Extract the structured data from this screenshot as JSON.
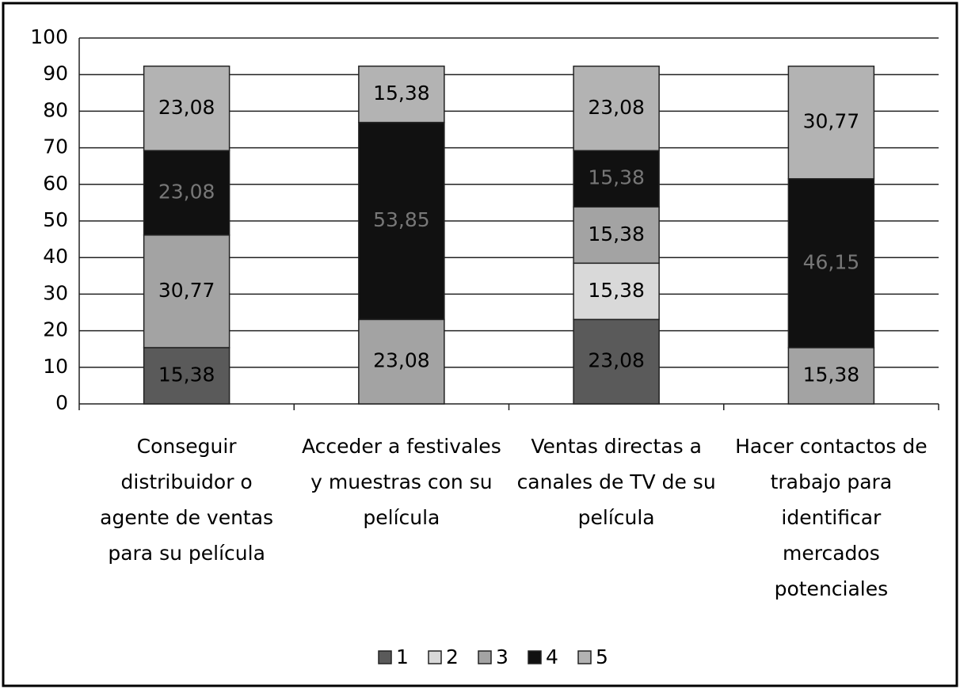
{
  "chart_data": {
    "type": "stacked_bar",
    "categories": [
      "Conseguir\ndistribuidor o\nagente de ventas\npara su película",
      "Acceder a festivales\ny muestras con su\npelícula",
      "Ventas directas a\ncanales de TV de su\npelícula",
      "Hacer contactos de\ntrabajo para\nidentificar\nmercados\npotenciales"
    ],
    "series": [
      {
        "name": "1",
        "color": "#5a5a5a",
        "values": [
          15.38,
          0,
          23.08,
          0
        ],
        "value_labels": [
          "15,38",
          null,
          "23,08",
          null
        ]
      },
      {
        "name": "2",
        "color": "#d9d9d9",
        "values": [
          0,
          0,
          15.38,
          0
        ],
        "value_labels": [
          null,
          null,
          "15,38",
          null
        ]
      },
      {
        "name": "3",
        "color": "#a3a3a3",
        "values": [
          30.77,
          23.08,
          15.38,
          15.38
        ],
        "value_labels": [
          "30,77",
          "23,08",
          "15,38",
          "15,38"
        ]
      },
      {
        "name": "4",
        "color": "#111111",
        "values": [
          23.08,
          53.85,
          15.38,
          46.15
        ],
        "value_labels": [
          "23,08",
          "53,85",
          "15,38",
          "46,15"
        ]
      },
      {
        "name": "5",
        "color": "#b3b3b3",
        "values": [
          23.08,
          15.38,
          23.08,
          30.77
        ],
        "value_labels": [
          "23,08",
          "15,38",
          "23,08",
          "30,77"
        ]
      }
    ],
    "ylim": [
      0,
      100
    ],
    "yticks": [
      0,
      10,
      20,
      30,
      40,
      50,
      60,
      70,
      80,
      90,
      100
    ],
    "grid": true,
    "legend": "bottom"
  }
}
